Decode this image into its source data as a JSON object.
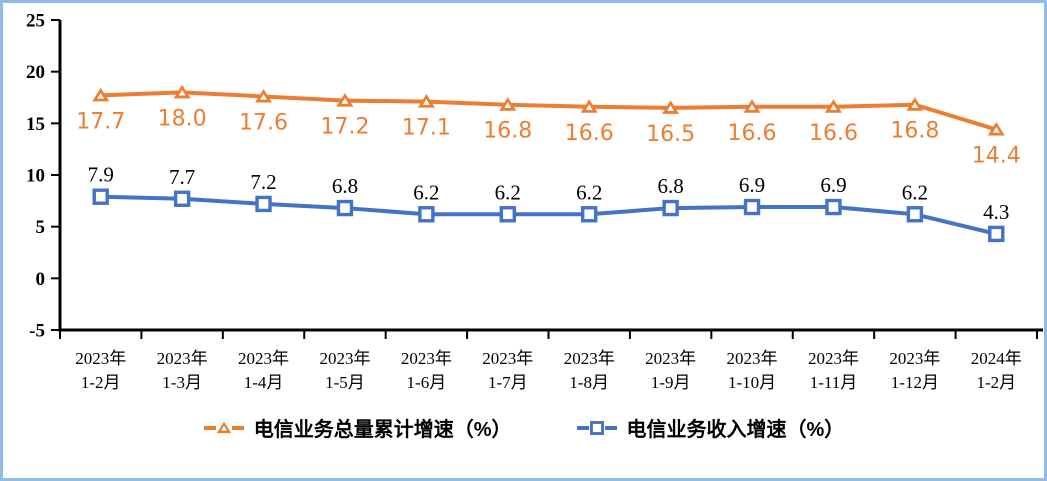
{
  "frame": {
    "border_color": "#8FBCE6",
    "background": "#FFFFFF"
  },
  "chart_data": {
    "type": "line",
    "title": "",
    "xlabel": "",
    "ylabel": "",
    "categories": [
      [
        "2023年",
        "1-2月"
      ],
      [
        "2023年",
        "1-3月"
      ],
      [
        "2023年",
        "1-4月"
      ],
      [
        "2023年",
        "1-5月"
      ],
      [
        "2023年",
        "1-6月"
      ],
      [
        "2023年",
        "1-7月"
      ],
      [
        "2023年",
        "1-8月"
      ],
      [
        "2023年",
        "1-9月"
      ],
      [
        "2023年",
        "1-10月"
      ],
      [
        "2023年",
        "1-11月"
      ],
      [
        "2023年",
        "1-12月"
      ],
      [
        "2024年",
        "1-2月"
      ]
    ],
    "series": [
      {
        "name": "电信业务总量累计增速（%）",
        "values": [
          17.7,
          18.0,
          17.6,
          17.2,
          17.1,
          16.8,
          16.6,
          16.5,
          16.6,
          16.6,
          16.8,
          14.4
        ],
        "color": "#ED7D31",
        "marker": "triangle",
        "label_color": "#ED7D31",
        "label_position": "below"
      },
      {
        "name": "电信业务收入增速（%）",
        "values": [
          7.9,
          7.7,
          7.2,
          6.8,
          6.2,
          6.2,
          6.2,
          6.8,
          6.9,
          6.9,
          6.2,
          4.3
        ],
        "color": "#4472C4",
        "marker": "square",
        "label_color": "#000000",
        "label_position": "above"
      }
    ],
    "ylim": [
      -5,
      25
    ],
    "yticks": [
      -5,
      0,
      5,
      10,
      15,
      20,
      25
    ],
    "label_decimals": 1,
    "grid": false,
    "legend_position": "bottom",
    "axis_color": "#000000"
  }
}
